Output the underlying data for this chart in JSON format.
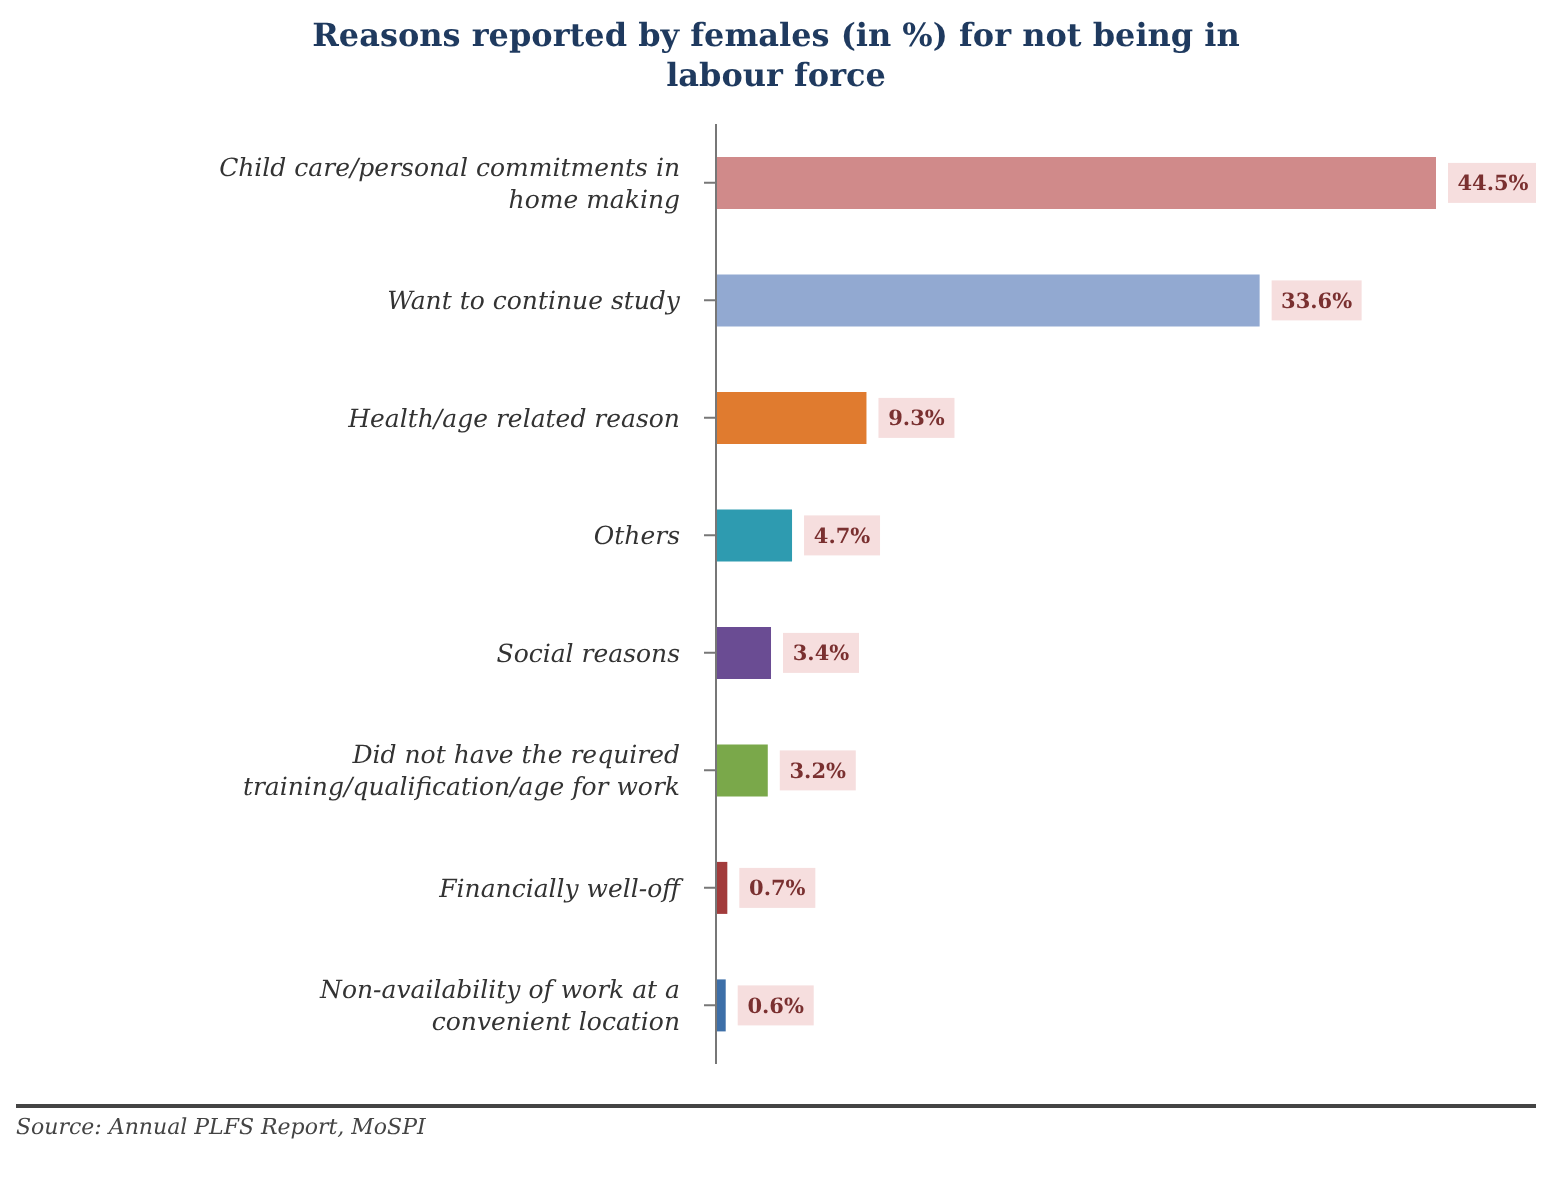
{
  "chart_data": {
    "type": "bar",
    "orientation": "horizontal",
    "title": "Reasons reported by females (in %) for not being in labour force",
    "categories": [
      "Child care/personal commitments in home making",
      "Want to continue study",
      "Health/age related reason",
      "Others",
      "Social reasons",
      "Did not have the required training/qualification/age for work",
      "Financially well-off",
      "Non-availability of work at a convenient location"
    ],
    "values": [
      44.5,
      33.6,
      9.3,
      4.7,
      3.4,
      3.2,
      0.7,
      0.6
    ],
    "colors": [
      "#d08a8a",
      "#92a9d1",
      "#e07b2f",
      "#2e9bb0",
      "#6a4c93",
      "#7aa84a",
      "#a23b3b",
      "#3d6fa8"
    ],
    "value_labels": [
      "44.5%",
      "33.6%",
      "9.3%",
      "4.7%",
      "3.4%",
      "3.2%",
      "0.7%",
      "0.6%"
    ],
    "annotations": [
      "Source: Annual PLFS Report, MoSPI"
    ]
  }
}
